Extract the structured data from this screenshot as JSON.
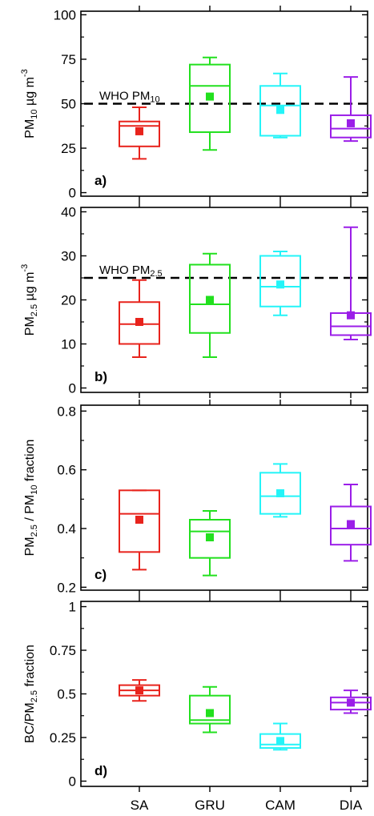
{
  "chart_data": [
    {
      "type": "box",
      "panel_label": "a)",
      "ylabel": {
        "base": "PM",
        "sub": "10",
        "rest": "  µg m",
        "sup": "-3"
      },
      "ylim": [
        -2,
        102
      ],
      "yticks": [
        0,
        25,
        50,
        75,
        100
      ],
      "reference_line": {
        "value": 50,
        "label_base": "WHO PM",
        "label_sub": "10"
      },
      "boxes": [
        {
          "category": "SA",
          "min": 19,
          "q1": 26,
          "median": 37.5,
          "q3": 40,
          "max": 48,
          "mean": 34.5,
          "color": "#e8231c"
        },
        {
          "category": "GRU",
          "min": 24,
          "q1": 34,
          "median": 60,
          "q3": 72,
          "max": 76,
          "mean": 54,
          "color": "#22e01e"
        },
        {
          "category": "CAM",
          "min": 31,
          "q1": 32,
          "median": 49,
          "q3": 60,
          "max": 67,
          "mean": 46.5,
          "color": "#24f4f8"
        },
        {
          "category": "DIA",
          "min": 29,
          "q1": 31,
          "median": 36,
          "q3": 43.5,
          "max": 65,
          "mean": 39,
          "color": "#9b1ee8"
        }
      ]
    },
    {
      "type": "box",
      "panel_label": "b)",
      "ylabel": {
        "base": "PM",
        "sub": "2.5",
        "rest": " µg m",
        "sup": "-3"
      },
      "ylim": [
        -1,
        41
      ],
      "yticks": [
        0,
        10,
        20,
        30,
        40
      ],
      "reference_line": {
        "value": 25,
        "label_base": "WHO PM",
        "label_sub": "2.5"
      },
      "boxes": [
        {
          "category": "SA",
          "min": 7,
          "q1": 10,
          "median": 14.5,
          "q3": 19.5,
          "max": 24.5,
          "mean": 15,
          "color": "#e8231c"
        },
        {
          "category": "GRU",
          "min": 7,
          "q1": 12.5,
          "median": 19,
          "q3": 28,
          "max": 30.5,
          "mean": 20,
          "color": "#22e01e"
        },
        {
          "category": "CAM",
          "min": 16.5,
          "q1": 18.5,
          "median": 23,
          "q3": 30,
          "max": 31,
          "mean": 23.5,
          "color": "#24f4f8"
        },
        {
          "category": "DIA",
          "min": 11,
          "q1": 12,
          "median": 14,
          "q3": 17,
          "max": 36.5,
          "mean": 16.5,
          "color": "#9b1ee8"
        }
      ]
    },
    {
      "type": "box",
      "panel_label": "c)",
      "ylabel": {
        "base": "PM",
        "sub": "2.5",
        "rest": " / PM",
        "sub2": "10",
        "rest2": " fraction"
      },
      "ylim": [
        0.19,
        0.82
      ],
      "yticks": [
        0.2,
        0.4,
        0.6,
        0.8
      ],
      "reference_line": null,
      "boxes": [
        {
          "category": "SA",
          "min": 0.26,
          "q1": 0.32,
          "median": 0.45,
          "q3": 0.53,
          "max": 0.53,
          "mean": 0.43,
          "color": "#e8231c"
        },
        {
          "category": "GRU",
          "min": 0.24,
          "q1": 0.3,
          "median": 0.39,
          "q3": 0.43,
          "max": 0.46,
          "mean": 0.37,
          "color": "#22e01e"
        },
        {
          "category": "CAM",
          "min": 0.44,
          "q1": 0.45,
          "median": 0.51,
          "q3": 0.59,
          "max": 0.62,
          "mean": 0.52,
          "color": "#24f4f8"
        },
        {
          "category": "DIA",
          "min": 0.29,
          "q1": 0.345,
          "median": 0.4,
          "q3": 0.475,
          "max": 0.55,
          "mean": 0.415,
          "color": "#9b1ee8"
        }
      ]
    },
    {
      "type": "box",
      "panel_label": "d)",
      "ylabel": {
        "base": "BC/PM",
        "sub": "2.5",
        "rest": " fraction"
      },
      "ylim": [
        -0.03,
        1.03
      ],
      "yticks": [
        0,
        0.25,
        0.5,
        0.75,
        1
      ],
      "reference_line": null,
      "boxes": [
        {
          "category": "SA",
          "min": 0.46,
          "q1": 0.49,
          "median": 0.52,
          "q3": 0.55,
          "max": 0.58,
          "mean": 0.52,
          "color": "#e8231c"
        },
        {
          "category": "GRU",
          "min": 0.28,
          "q1": 0.33,
          "median": 0.35,
          "q3": 0.49,
          "max": 0.54,
          "mean": 0.39,
          "color": "#22e01e"
        },
        {
          "category": "CAM",
          "min": 0.18,
          "q1": 0.19,
          "median": 0.21,
          "q3": 0.27,
          "max": 0.33,
          "mean": 0.23,
          "color": "#24f4f8"
        },
        {
          "category": "DIA",
          "min": 0.39,
          "q1": 0.41,
          "median": 0.45,
          "q3": 0.48,
          "max": 0.52,
          "mean": 0.45,
          "color": "#9b1ee8"
        }
      ]
    }
  ],
  "x_categories": [
    "SA",
    "GRU",
    "CAM",
    "DIA"
  ]
}
